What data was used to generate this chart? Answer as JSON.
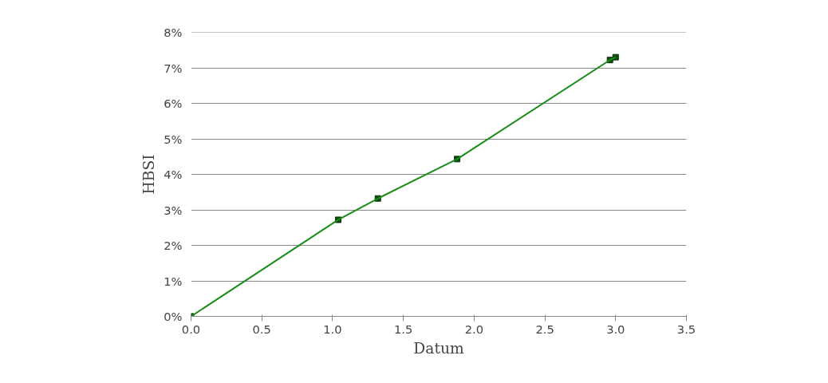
{
  "chart_data": {
    "type": "line",
    "xlabel": "Datum",
    "ylabel": "HBSI",
    "series": [
      {
        "color": "#1a8c1a",
        "x": [
          0,
          1.04,
          1.32,
          1.88,
          2.96,
          3.0
        ],
        "values": [
          0,
          2.72,
          3.32,
          4.43,
          7.22,
          7.3
        ]
      }
    ],
    "marker": "square",
    "line_style": "solid",
    "grid": "y",
    "xlim": [
      0,
      3.5
    ],
    "xticks": [
      {
        "value": 0,
        "label": "0.0"
      },
      0.5,
      {
        "value": 1,
        "label": "1.0"
      },
      1.5,
      {
        "value": 2,
        "label": "2.0"
      },
      2.5,
      {
        "value": 3,
        "label": "3.0"
      },
      3.5
    ],
    "ylim": [
      0,
      8
    ],
    "yticks": [
      {
        "value": 0,
        "label": "0%"
      },
      {
        "value": 1,
        "label": "1%"
      },
      {
        "value": 2,
        "label": "2%"
      },
      {
        "value": 3,
        "label": "3%"
      },
      {
        "value": 4,
        "label": "4%"
      },
      {
        "value": 5,
        "label": "5%"
      },
      {
        "value": 6,
        "label": "6%"
      },
      {
        "value": 7,
        "label": "7%"
      },
      {
        "value": 8,
        "label": "8%"
      }
    ]
  }
}
